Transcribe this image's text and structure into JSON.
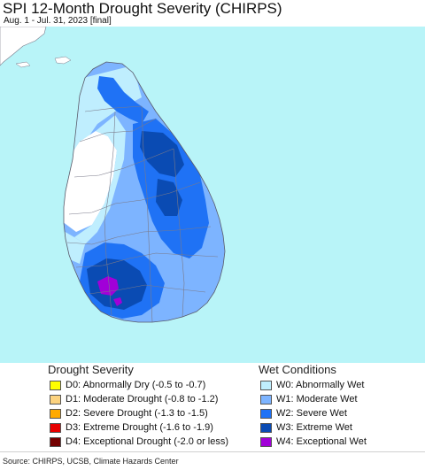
{
  "title": "SPI 12-Month Drought Severity (CHIRPS)",
  "subtitle": "Aug. 1 - Jul. 31, 2023 [final]",
  "map": {
    "region": "Sri Lanka",
    "colors": {
      "ocean": "#b8f4f8",
      "neighbor_land": "#ffffff",
      "normal": "#ffffff",
      "w0": "#bfeefe",
      "w1": "#7db4ff",
      "w2": "#1f72f5",
      "w3": "#0a4bb3",
      "w4": "#a100d8",
      "boundary": "#7a7a8a"
    }
  },
  "legend": {
    "drought": {
      "heading": "Drought Severity",
      "items": [
        {
          "code": "D0",
          "label": "D0: Abnormally Dry (-0.5 to -0.7)",
          "color": "#ffff00"
        },
        {
          "code": "D1",
          "label": "D1: Moderate Drought (-0.8 to -1.2)",
          "color": "#fcd37f"
        },
        {
          "code": "D2",
          "label": "D2: Severe Drought (-1.3 to -1.5)",
          "color": "#ffaa00"
        },
        {
          "code": "D3",
          "label": "D3: Extreme Drought (-1.6 to -1.9)",
          "color": "#e60000"
        },
        {
          "code": "D4",
          "label": "D4: Exceptional Drought (-2.0 or less)",
          "color": "#730000"
        }
      ]
    },
    "wet": {
      "heading": "Wet Conditions",
      "items": [
        {
          "code": "W0",
          "label": "W0: Abnormally Wet",
          "color": "#bfeefe"
        },
        {
          "code": "W1",
          "label": "W1: Moderate Wet",
          "color": "#7db4ff"
        },
        {
          "code": "W2",
          "label": "W2: Severe Wet",
          "color": "#1f72f5"
        },
        {
          "code": "W3",
          "label": "W3: Extreme Wet",
          "color": "#0a4bb3"
        },
        {
          "code": "W4",
          "label": "W4: Exceptional Wet",
          "color": "#a100d8"
        }
      ]
    }
  },
  "source": "Source: CHIRPS, UCSB, Climate Hazards Center"
}
